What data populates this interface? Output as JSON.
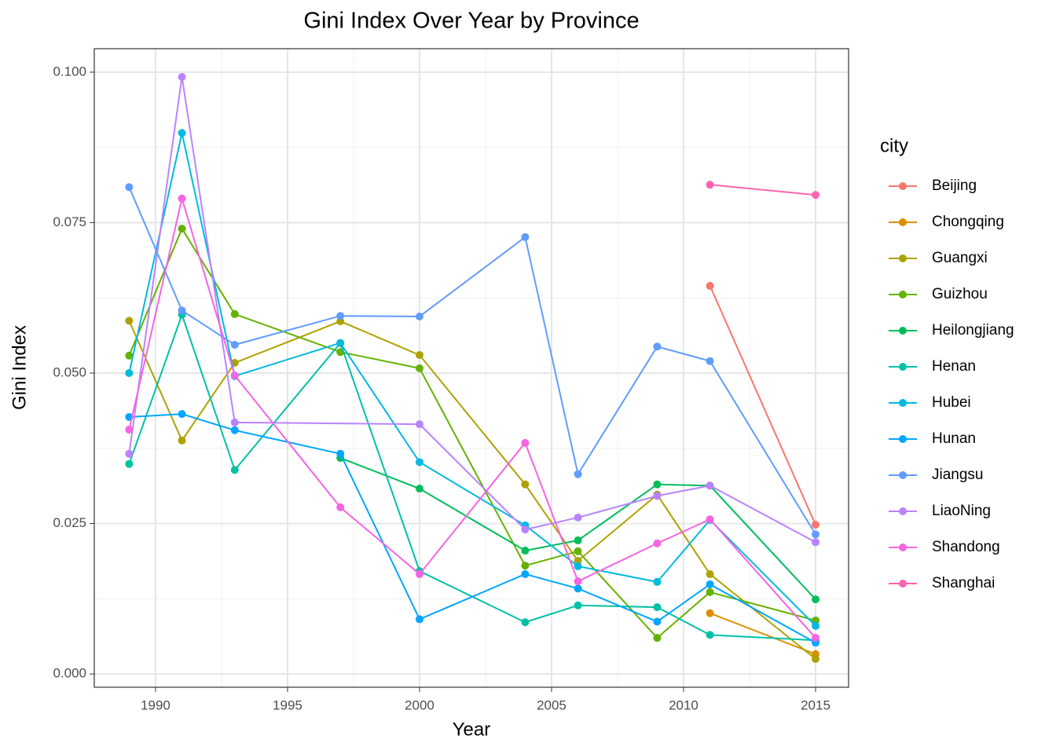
{
  "chart_data": {
    "type": "line",
    "title": "Gini Index Over Year by Province",
    "x_label": "Year",
    "y_label": "Gini Index",
    "legend_title": "city",
    "legend": "right",
    "grid": true,
    "xlim": [
      1987.68,
      2016.25
    ],
    "ylim": [
      -0.0022,
      0.1039
    ],
    "xticks": [
      1990,
      1995,
      2000,
      2005,
      2010,
      2015
    ],
    "yticks": [
      {
        "value": 0,
        "label": "0.000"
      },
      {
        "value": 0.025,
        "label": "0.025"
      },
      {
        "value": 0.05,
        "label": "0.050"
      },
      {
        "value": 0.075,
        "label": "0.075"
      },
      {
        "value": 0.1,
        "label": "0.100"
      }
    ],
    "xminor": [
      1992.5,
      1997.5,
      2002.5,
      2007.5,
      2012.5
    ],
    "yminor": [
      0.0125,
      0.0375,
      0.0625,
      0.0875
    ],
    "series": [
      {
        "name": "Beijing",
        "color": "#F8766D",
        "x": [
          2011,
          2015
        ],
        "values": [
          0.0645,
          0.0248
        ]
      },
      {
        "name": "Chongqing",
        "color": "#DB8E00",
        "x": [
          2011,
          2015
        ],
        "values": [
          0.0101,
          0.0033
        ]
      },
      {
        "name": "Guangxi",
        "color": "#AEA200",
        "x": [
          1989,
          1991,
          1993,
          1997,
          2000,
          2004,
          2006,
          2009,
          2011,
          2015
        ],
        "values": [
          0.0587,
          0.0388,
          0.0517,
          0.0586,
          0.053,
          0.0315,
          0.0188,
          0.0298,
          0.0166,
          0.0025
        ]
      },
      {
        "name": "Guizhou",
        "color": "#64B200",
        "x": [
          1989,
          1991,
          1993,
          1997,
          2000,
          2004,
          2006,
          2009,
          2011,
          2015
        ],
        "values": [
          0.0529,
          0.074,
          0.0598,
          0.0535,
          0.0508,
          0.018,
          0.0204,
          0.006,
          0.0136,
          0.0089
        ]
      },
      {
        "name": "Heilongjiang",
        "color": "#00BD5C",
        "x": [
          1997,
          2000,
          2004,
          2006,
          2009,
          2011,
          2015
        ],
        "values": [
          0.0359,
          0.0308,
          0.0205,
          0.0222,
          0.0315,
          0.0313,
          0.0124
        ]
      },
      {
        "name": "Henan",
        "color": "#00C1A7",
        "x": [
          1989,
          1991,
          1993,
          1997,
          2000,
          2004,
          2006,
          2009,
          2011,
          2015
        ],
        "values": [
          0.0349,
          0.0597,
          0.0339,
          0.055,
          0.0171,
          0.0086,
          0.0114,
          0.0111,
          0.0065,
          0.0056
        ]
      },
      {
        "name": "Hubei",
        "color": "#00BADE",
        "x": [
          1989,
          1991,
          1993,
          1997,
          2000,
          2004,
          2006,
          2009,
          2011,
          2015
        ],
        "values": [
          0.05,
          0.0899,
          0.0495,
          0.055,
          0.0352,
          0.0247,
          0.0179,
          0.0153,
          0.0256,
          0.008
        ]
      },
      {
        "name": "Hunan",
        "color": "#00A6FF",
        "x": [
          1989,
          1991,
          1993,
          1997,
          2000,
          2004,
          2006,
          2009,
          2011,
          2015
        ],
        "values": [
          0.0427,
          0.0432,
          0.0405,
          0.0366,
          0.0091,
          0.0166,
          0.0142,
          0.0087,
          0.0149,
          0.0052
        ]
      },
      {
        "name": "Jiangsu",
        "color": "#619CFF",
        "x": [
          1989,
          1991,
          1993,
          1997,
          2000,
          2004,
          2006,
          2009,
          2011,
          2015
        ],
        "values": [
          0.0809,
          0.0604,
          0.0547,
          0.0595,
          0.0594,
          0.0726,
          0.0332,
          0.0544,
          0.052,
          0.0232
        ]
      },
      {
        "name": "LiaoNing",
        "color": "#B983FF",
        "x": [
          1989,
          1991,
          1993,
          2000,
          2004,
          2006,
          2009,
          2011,
          2015
        ],
        "values": [
          0.0366,
          0.0992,
          0.0418,
          0.0415,
          0.024,
          0.026,
          0.0296,
          0.0313,
          0.0219
        ]
      },
      {
        "name": "Shandong",
        "color": "#F564E3",
        "x": [
          1989,
          1991,
          1993,
          1997,
          2000,
          2004,
          2006,
          2009,
          2011,
          2015
        ],
        "values": [
          0.0406,
          0.079,
          0.0496,
          0.0277,
          0.0166,
          0.0384,
          0.0154,
          0.0217,
          0.0257,
          0.006
        ]
      },
      {
        "name": "Shanghai",
        "color": "#FF64B0",
        "x": [
          2011,
          2015
        ],
        "values": [
          0.0813,
          0.0796
        ]
      }
    ]
  }
}
